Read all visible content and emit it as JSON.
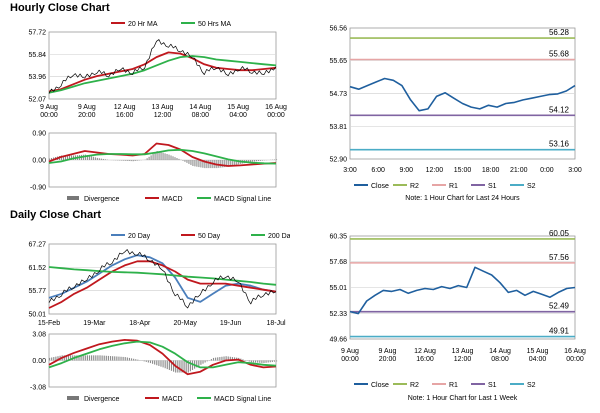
{
  "sections": [
    {
      "title": "Hourly Close Chart"
    },
    {
      "title": "Daily Close Chart"
    }
  ],
  "chart_data": [
    {
      "id": "hourly_price",
      "type": "line",
      "yticks": [
        "57.72",
        "55.84",
        "53.96",
        "52.07"
      ],
      "ylim": [
        52.07,
        57.72
      ],
      "xticks": [
        [
          "9 Aug",
          "00:00"
        ],
        [
          "9 Aug",
          "20:00"
        ],
        [
          "12 Aug",
          "16:00"
        ],
        [
          "13 Aug",
          "12:00"
        ],
        [
          "14 Aug",
          "08:00"
        ],
        [
          "15 Aug",
          "04:00"
        ],
        [
          "16 Aug",
          "00:00"
        ]
      ],
      "legend": [
        "20 Hr MA",
        "50 Hrs MA"
      ],
      "series": [
        {
          "name": "20 Hr MA",
          "color": "#c0181e",
          "values": [
            52.7,
            52.9,
            53.3,
            53.7,
            54.0,
            54.2,
            54.4,
            54.6,
            55.0,
            55.6,
            56.0,
            55.9,
            55.5,
            55.0,
            54.7,
            54.6,
            54.5,
            54.5,
            54.6,
            54.7
          ]
        },
        {
          "name": "50 Hrs MA",
          "color": "#2eb14a",
          "values": [
            52.6,
            52.8,
            53.1,
            53.4,
            53.6,
            53.8,
            54.0,
            54.2,
            54.5,
            54.9,
            55.3,
            55.6,
            55.7,
            55.6,
            55.4,
            55.3,
            55.2,
            55.1,
            55.0,
            54.9
          ]
        },
        {
          "name": "",
          "color": "#000000",
          "values": [
            52.6,
            53.3,
            54.2,
            53.9,
            54.4,
            54.1,
            54.6,
            54.3,
            54.8,
            57.0,
            56.6,
            56.2,
            55.6,
            54.3,
            54.8,
            54.1,
            54.7,
            54.4,
            54.2,
            54.8
          ]
        }
      ]
    },
    {
      "id": "hourly_macd",
      "type": "line",
      "yticks": [
        "0.90",
        "0.00",
        "-0.90"
      ],
      "ylim": [
        -0.9,
        0.9
      ],
      "legend": [
        "Divergence",
        "MACD",
        "MACD Signal Line"
      ],
      "series": [
        {
          "name": "MACD",
          "color": "#c0181e",
          "values": [
            -0.05,
            0.1,
            0.2,
            0.3,
            0.25,
            0.2,
            0.18,
            0.15,
            0.2,
            0.55,
            0.5,
            0.35,
            0.1,
            -0.05,
            -0.15,
            -0.2,
            -0.18,
            -0.15,
            -0.12,
            -0.1
          ]
        },
        {
          "name": "MACD Signal Line",
          "color": "#2eb14a",
          "values": [
            -0.1,
            -0.05,
            0.05,
            0.12,
            0.18,
            0.2,
            0.2,
            0.19,
            0.19,
            0.25,
            0.32,
            0.34,
            0.3,
            0.22,
            0.12,
            0.02,
            -0.05,
            -0.09,
            -0.11,
            -0.12
          ]
        },
        {
          "name": "Divergence",
          "color": "#777777",
          "values": [
            0.05,
            0.15,
            0.15,
            0.18,
            0.07,
            0.0,
            -0.02,
            -0.04,
            0.01,
            0.3,
            0.18,
            0.01,
            -0.2,
            -0.27,
            -0.27,
            -0.22,
            -0.13,
            -0.06,
            -0.01,
            0.02
          ]
        }
      ]
    },
    {
      "id": "hourly_levels",
      "type": "line",
      "yticks": [
        "56.56",
        "55.65",
        "54.73",
        "53.81",
        "52.90"
      ],
      "ylim": [
        52.9,
        56.56
      ],
      "xticks": [
        "3:00",
        "6:00",
        "9:00",
        "12:00",
        "15:00",
        "18:00",
        "21:00",
        "0:00",
        "3:00"
      ],
      "levels": [
        {
          "name": "R2",
          "value": 56.28,
          "label": "56.28",
          "color": "#9bbb59"
        },
        {
          "name": "R1",
          "value": 55.68,
          "label": "55.68",
          "color": "#e6a5a5"
        },
        {
          "name": "S1",
          "value": 54.12,
          "label": "54.12",
          "color": "#8064a2"
        },
        {
          "name": "S2",
          "value": 53.16,
          "label": "53.16",
          "color": "#4bacc6"
        }
      ],
      "series": [
        {
          "name": "Close",
          "color": "#1f5f9e",
          "values": [
            54.92,
            54.85,
            54.95,
            55.05,
            55.15,
            55.1,
            54.95,
            54.55,
            54.25,
            54.3,
            54.65,
            54.75,
            54.6,
            54.45,
            54.35,
            54.3,
            54.4,
            54.35,
            54.45,
            54.48,
            54.55,
            54.6,
            54.65,
            54.7,
            54.72,
            54.8,
            54.95
          ]
        }
      ],
      "legend": [
        "Close",
        "R2",
        "R1",
        "S1",
        "S2"
      ],
      "note": "Note: 1 Hour Chart for Last 24 Hours"
    },
    {
      "id": "daily_price",
      "type": "line",
      "yticks": [
        "67.27",
        "61.52",
        "55.77",
        "50.01"
      ],
      "ylim": [
        50.01,
        67.27
      ],
      "xticks": [
        "15-Feb",
        "19-Mar",
        "18-Apr",
        "20-May",
        "19-Jun",
        "18-Jul"
      ],
      "legend": [
        "20 Day",
        "50 Day",
        "200 Day"
      ],
      "series": [
        {
          "name": "20 Day",
          "color": "#4a7ebb",
          "values": [
            54.0,
            55.0,
            56.5,
            58.0,
            60.0,
            62.0,
            63.5,
            64.5,
            64.0,
            62.5,
            59.0,
            54.0,
            53.0,
            55.0,
            57.0,
            57.5,
            57.0,
            56.0,
            55.5
          ]
        },
        {
          "name": "50 Day",
          "color": "#c0181e",
          "values": [
            51.5,
            53.0,
            55.0,
            56.5,
            58.5,
            60.5,
            62.0,
            63.0,
            63.0,
            62.0,
            60.5,
            58.5,
            57.5,
            57.5,
            57.5,
            57.0,
            56.5,
            56.0,
            55.5
          ]
        },
        {
          "name": "200 Day",
          "color": "#2eb14a",
          "values": [
            61.6,
            61.3,
            61.0,
            60.8,
            60.6,
            60.4,
            60.3,
            60.2,
            60.0,
            59.8,
            59.5,
            59.2,
            59.0,
            58.8,
            58.5,
            58.2,
            57.9,
            57.5,
            57.2
          ]
        },
        {
          "name": "",
          "color": "#000000",
          "values": [
            53.0,
            55.0,
            57.0,
            58.5,
            61.0,
            63.0,
            65.5,
            65.0,
            63.5,
            61.0,
            55.0,
            52.0,
            55.0,
            58.0,
            59.5,
            58.0,
            53.0,
            55.0,
            55.5
          ]
        }
      ]
    },
    {
      "id": "daily_macd",
      "type": "line",
      "yticks": [
        "3.08",
        "0.00",
        "-3.08"
      ],
      "ylim": [
        -3.08,
        3.08
      ],
      "legend": [
        "Divergence",
        "MACD",
        "MACD Signal Line"
      ],
      "series": [
        {
          "name": "MACD",
          "color": "#c0181e",
          "values": [
            -0.5,
            0.3,
            0.9,
            1.4,
            1.9,
            2.2,
            2.4,
            2.3,
            1.8,
            0.8,
            -0.6,
            -1.6,
            -1.3,
            -0.5,
            0.0,
            0.1,
            -0.5,
            -0.8,
            -0.7
          ]
        },
        {
          "name": "MACD Signal Line",
          "color": "#2eb14a",
          "values": [
            -0.8,
            -0.3,
            0.3,
            0.8,
            1.3,
            1.7,
            2.0,
            2.2,
            2.1,
            1.6,
            0.8,
            -0.2,
            -0.8,
            -0.8,
            -0.5,
            -0.2,
            -0.3,
            -0.5,
            -0.6
          ]
        },
        {
          "name": "Divergence",
          "color": "#777777",
          "values": [
            0.3,
            0.6,
            0.6,
            0.6,
            0.6,
            0.5,
            0.4,
            0.1,
            -0.3,
            -0.8,
            -1.4,
            -1.4,
            -0.5,
            0.3,
            0.5,
            0.3,
            -0.2,
            -0.3,
            -0.1
          ]
        }
      ]
    },
    {
      "id": "daily_levels",
      "type": "line",
      "yticks": [
        "60.35",
        "57.68",
        "55.01",
        "52.33",
        "49.66"
      ],
      "ylim": [
        49.66,
        60.35
      ],
      "xticks": [
        [
          "9 Aug",
          "00:00"
        ],
        [
          "9 Aug",
          "20:00"
        ],
        [
          "12 Aug",
          "16:00"
        ],
        [
          "13 Aug",
          "12:00"
        ],
        [
          "14 Aug",
          "08:00"
        ],
        [
          "15 Aug",
          "04:00"
        ],
        [
          "16 Aug",
          "00:00"
        ]
      ],
      "levels": [
        {
          "name": "R2",
          "value": 60.05,
          "label": "60.05",
          "color": "#9bbb59"
        },
        {
          "name": "R1",
          "value": 57.56,
          "label": "57.56",
          "color": "#e6a5a5"
        },
        {
          "name": "S1",
          "value": 52.49,
          "label": "52.49",
          "color": "#8064a2"
        },
        {
          "name": "S2",
          "value": 49.91,
          "label": "49.91",
          "color": "#4bacc6"
        }
      ],
      "series": [
        {
          "name": "Close",
          "color": "#1f5f9e",
          "values": [
            52.5,
            52.3,
            53.6,
            54.2,
            54.7,
            54.6,
            54.8,
            54.4,
            54.7,
            54.9,
            54.8,
            55.1,
            54.9,
            55.2,
            55.0,
            57.1,
            56.7,
            56.3,
            55.5,
            54.5,
            54.7,
            54.2,
            54.6,
            54.3,
            54.0,
            54.5,
            54.9,
            55.0
          ]
        }
      ],
      "legend": [
        "Close",
        "R2",
        "R1",
        "S1",
        "S2"
      ],
      "note": "Note: 1 Hour Chart for Last 1 Week"
    }
  ]
}
